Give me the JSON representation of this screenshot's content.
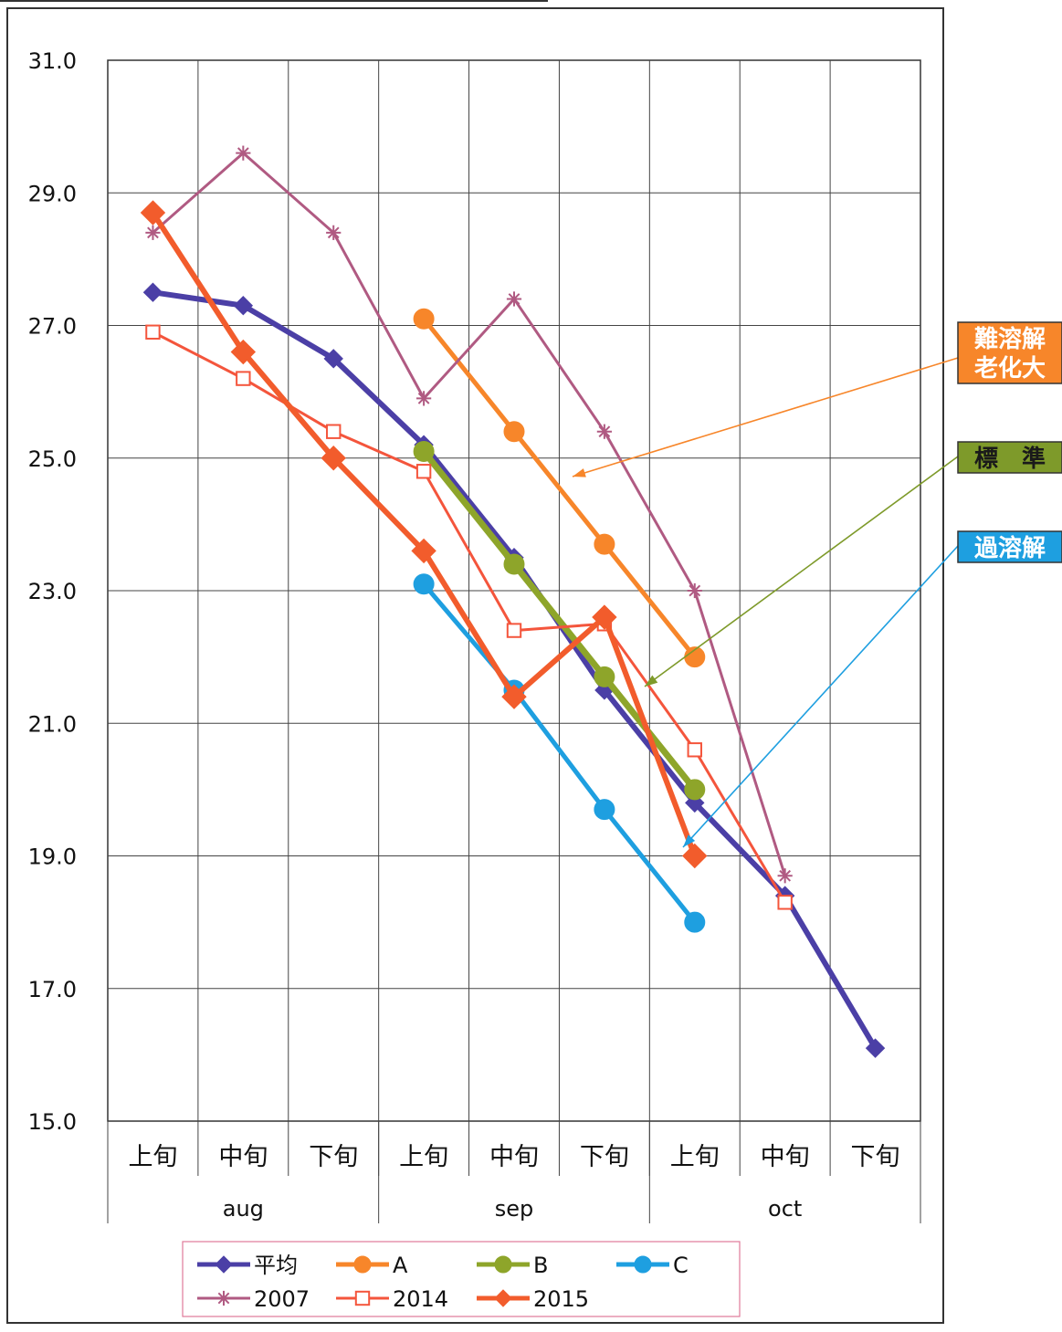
{
  "chart_data": {
    "type": "line",
    "title": "",
    "xlabel": "",
    "ylabel": "",
    "ylim": [
      15.0,
      31.0
    ],
    "y_ticks": [
      "31.0",
      "29.0",
      "27.0",
      "25.0",
      "23.0",
      "21.0",
      "19.0",
      "17.0",
      "15.0"
    ],
    "categories": [
      "上旬",
      "中旬",
      "下旬",
      "上旬",
      "中旬",
      "下旬",
      "上旬",
      "中旬",
      "下旬"
    ],
    "groups": [
      {
        "label": "aug",
        "span": 3
      },
      {
        "label": "sep",
        "span": 3
      },
      {
        "label": "oct",
        "span": 3
      }
    ],
    "grid": true,
    "legend_position": "bottom",
    "series": [
      {
        "name": "平均",
        "color": "#4b3fa6",
        "marker": "diamond",
        "values": [
          27.5,
          27.3,
          26.5,
          25.2,
          23.5,
          21.5,
          19.8,
          18.4,
          16.1
        ]
      },
      {
        "name": "A",
        "color": "#f7862a",
        "marker": "circle",
        "values": [
          null,
          null,
          null,
          27.1,
          25.4,
          23.7,
          22.0,
          null,
          null
        ]
      },
      {
        "name": "B",
        "color": "#8ea52a",
        "marker": "circle",
        "values": [
          null,
          null,
          null,
          25.1,
          23.4,
          21.7,
          20.0,
          null,
          null
        ]
      },
      {
        "name": "C",
        "color": "#1e9fe0",
        "marker": "circle",
        "values": [
          null,
          null,
          null,
          23.1,
          21.5,
          19.7,
          18.0,
          null,
          null
        ]
      },
      {
        "name": "2007",
        "color": "#b05a82",
        "marker": "star",
        "values": [
          28.4,
          29.6,
          28.4,
          25.9,
          27.4,
          25.4,
          23.0,
          18.7,
          null
        ]
      },
      {
        "name": "2014",
        "color": "#f4553c",
        "marker": "open-square",
        "values": [
          26.9,
          26.2,
          25.4,
          24.8,
          22.4,
          22.5,
          20.6,
          18.3,
          null
        ]
      },
      {
        "name": "2015",
        "color": "#f25c2c",
        "marker": "diamond",
        "values": [
          28.7,
          26.6,
          25.0,
          23.6,
          21.4,
          22.6,
          19.0,
          null,
          null
        ]
      }
    ],
    "annotations": [
      {
        "text": "難溶解\n老化大",
        "lines": [
          "難溶解",
          "老化大"
        ],
        "box_color": "#f7862a",
        "text_color": "#ffffff",
        "target_series": "A"
      },
      {
        "text": "標　準",
        "lines": [
          "標　準"
        ],
        "box_color": "#7e9a2a",
        "text_color": "#1a1a1a",
        "target_series": "B"
      },
      {
        "text": "過溶解",
        "lines": [
          "過溶解"
        ],
        "box_color": "#1e9fe0",
        "text_color": "#ffffff",
        "target_series": "C"
      }
    ]
  }
}
